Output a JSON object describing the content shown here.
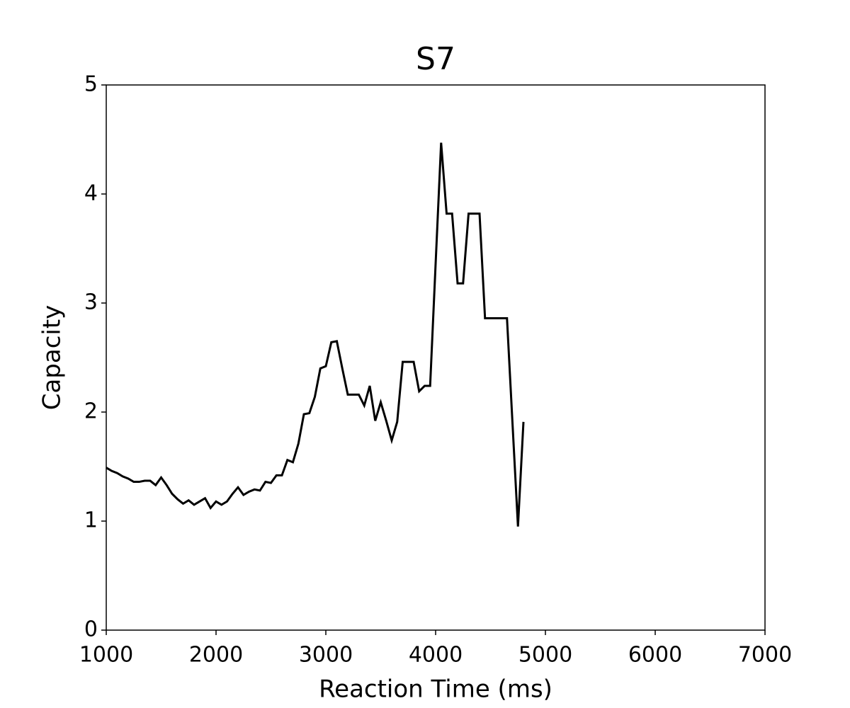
{
  "chart_data": {
    "type": "line",
    "title": "S7",
    "x_label": "Reaction Time (ms)",
    "y_label": "Capacity",
    "x": [
      1000,
      1050,
      1100,
      1150,
      1200,
      1250,
      1300,
      1350,
      1400,
      1450,
      1500,
      1550,
      1600,
      1650,
      1700,
      1750,
      1800,
      1850,
      1900,
      1950,
      2000,
      2050,
      2100,
      2150,
      2200,
      2250,
      2300,
      2350,
      2400,
      2450,
      2500,
      2550,
      2600,
      2650,
      2700,
      2750,
      2800,
      2850,
      2900,
      2950,
      3000,
      3050,
      3100,
      3150,
      3200,
      3250,
      3300,
      3350,
      3400,
      3450,
      3500,
      3550,
      3600,
      3650,
      3700,
      3750,
      3800,
      3850,
      3900,
      3950,
      4000,
      4050,
      4100,
      4150,
      4200,
      4250,
      4300,
      4350,
      4400,
      4450,
      4500,
      4550,
      4600,
      4650,
      4700,
      4750,
      4800
    ],
    "series": [
      {
        "color": "#000000",
        "values": [
          1.49,
          1.46,
          1.44,
          1.41,
          1.39,
          1.36,
          1.36,
          1.37,
          1.37,
          1.33,
          1.4,
          1.33,
          1.25,
          1.2,
          1.16,
          1.19,
          1.15,
          1.18,
          1.21,
          1.12,
          1.18,
          1.15,
          1.18,
          1.25,
          1.31,
          1.24,
          1.27,
          1.29,
          1.28,
          1.36,
          1.35,
          1.42,
          1.42,
          1.56,
          1.54,
          1.71,
          1.98,
          1.99,
          2.14,
          2.4,
          2.42,
          2.64,
          2.65,
          2.4,
          2.16,
          2.16,
          2.16,
          2.06,
          2.24,
          1.92,
          2.09,
          1.92,
          1.74,
          1.91,
          2.46,
          2.46,
          2.46,
          2.19,
          2.24,
          2.24,
          3.36,
          4.47,
          3.82,
          3.82,
          3.18,
          3.18,
          3.82,
          3.82,
          3.82,
          2.86,
          2.86,
          2.86,
          2.86,
          2.86,
          1.9,
          0.95,
          1.91
        ]
      }
    ],
    "xlim": [
      1000,
      7000
    ],
    "xticks": [
      1000,
      2000,
      3000,
      4000,
      5000,
      6000,
      7000
    ],
    "ylim": [
      0,
      5
    ],
    "yticks": [
      0,
      1,
      2,
      3,
      4,
      5
    ],
    "grid": false
  }
}
